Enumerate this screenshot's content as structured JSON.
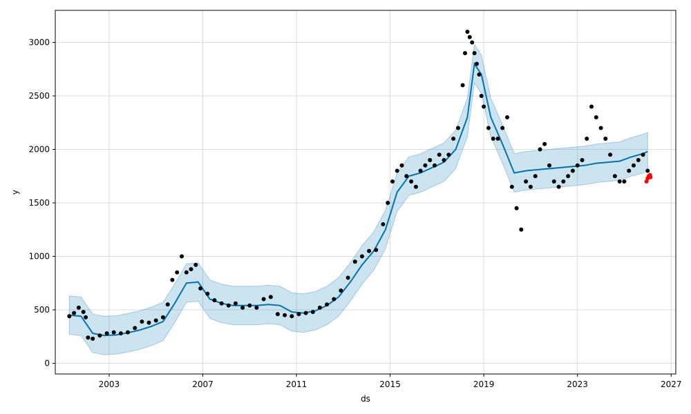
{
  "chart_data": {
    "type": "scatter",
    "title": "",
    "xlabel": "ds",
    "ylabel": "y",
    "xlim": [
      2000.7,
      2027.2
    ],
    "ylim": [
      -100,
      3300
    ],
    "grid": true,
    "x_ticks": [
      2003,
      2007,
      2011,
      2015,
      2019,
      2023,
      2027
    ],
    "x_tick_labels": [
      "2003",
      "2007",
      "2011",
      "2015",
      "2019",
      "2023",
      "2027"
    ],
    "y_ticks": [
      0,
      500,
      1000,
      1500,
      2000,
      2500,
      3000
    ],
    "y_tick_labels": [
      "0",
      "500",
      "1000",
      "1500",
      "2000",
      "2500",
      "3000"
    ],
    "colors": {
      "observed": "#000000",
      "forecast_line": "#0072B2",
      "uncertainty_band": "#0072B2",
      "recent": "#ff0000",
      "grid": "#dddddd"
    },
    "series": [
      {
        "kind": "observed_points",
        "x": [
          2001.3,
          2001.5,
          2001.7,
          2001.9,
          2002.0,
          2002.1,
          2002.3,
          2002.6,
          2002.9,
          2003.2,
          2003.5,
          2003.8,
          2004.1,
          2004.4,
          2004.7,
          2005.0,
          2005.3,
          2005.5,
          2005.7,
          2005.9,
          2006.1,
          2006.3,
          2006.5,
          2006.7,
          2006.9,
          2007.2,
          2007.5,
          2007.8,
          2008.1,
          2008.4,
          2008.7,
          2009.0,
          2009.3,
          2009.6,
          2009.9,
          2010.2,
          2010.5,
          2010.8,
          2011.1,
          2011.4,
          2011.7,
          2012.0,
          2012.3,
          2012.6,
          2012.9,
          2013.2,
          2013.5,
          2013.8,
          2014.1,
          2014.4,
          2014.7,
          2014.9,
          2015.1,
          2015.3,
          2015.5,
          2015.7,
          2015.9,
          2016.1,
          2016.3,
          2016.5,
          2016.7,
          2016.9,
          2017.1,
          2017.3,
          2017.5,
          2017.7,
          2017.9,
          2018.1,
          2018.2,
          2018.3,
          2018.4,
          2018.5,
          2018.6,
          2018.7,
          2018.8,
          2018.9,
          2019.0,
          2019.2,
          2019.4,
          2019.6,
          2019.8,
          2020.0,
          2020.2,
          2020.4,
          2020.6,
          2020.8,
          2021.0,
          2021.2,
          2021.4,
          2021.6,
          2021.8,
          2022.0,
          2022.2,
          2022.4,
          2022.6,
          2022.8,
          2023.0,
          2023.2,
          2023.4,
          2023.6,
          2023.8,
          2024.0,
          2024.2,
          2024.4,
          2024.6,
          2024.8,
          2025.0,
          2025.2,
          2025.4,
          2025.6,
          2025.8,
          2026.0
        ],
        "y": [
          440,
          470,
          520,
          480,
          430,
          240,
          230,
          260,
          280,
          290,
          280,
          290,
          330,
          390,
          380,
          400,
          430,
          550,
          780,
          850,
          1000,
          850,
          880,
          920,
          700,
          650,
          590,
          560,
          540,
          560,
          520,
          540,
          520,
          600,
          620,
          460,
          450,
          440,
          460,
          470,
          480,
          520,
          550,
          600,
          680,
          800,
          950,
          1000,
          1050,
          1060,
          1300,
          1500,
          1700,
          1800,
          1850,
          1750,
          1700,
          1650,
          1800,
          1850,
          1900,
          1850,
          1950,
          1900,
          1950,
          2100,
          2200,
          2600,
          2900,
          3100,
          3050,
          3000,
          2900,
          2800,
          2700,
          2500,
          2400,
          2200,
          2100,
          2100,
          2200,
          2300,
          1650,
          1450,
          1250,
          1700,
          1650,
          1750,
          2000,
          2050,
          1850,
          1700,
          1650,
          1700,
          1750,
          1800,
          1850,
          1900,
          2100,
          2400,
          2300,
          2200,
          2100,
          1950,
          1750,
          1700,
          1700,
          1800,
          1850,
          1900,
          1950,
          1800
        ]
      },
      {
        "kind": "forecast_yhat",
        "x": [
          2001.3,
          2001.8,
          2002.3,
          2002.8,
          2003.3,
          2003.8,
          2004.3,
          2004.8,
          2005.3,
          2005.8,
          2006.3,
          2006.8,
          2007.3,
          2007.8,
          2008.3,
          2008.8,
          2009.3,
          2009.8,
          2010.3,
          2010.8,
          2011.3,
          2011.8,
          2012.3,
          2012.8,
          2013.3,
          2013.8,
          2014.3,
          2014.8,
          2015.3,
          2015.8,
          2016.3,
          2016.8,
          2017.3,
          2017.8,
          2018.3,
          2018.6,
          2018.9,
          2019.3,
          2019.8,
          2020.3,
          2020.8,
          2021.3,
          2021.8,
          2022.3,
          2022.8,
          2023.3,
          2023.8,
          2024.3,
          2024.8,
          2025.3,
          2025.8,
          2026.0
        ],
        "y": [
          450,
          440,
          280,
          260,
          265,
          285,
          310,
          345,
          390,
          560,
          750,
          760,
          600,
          560,
          540,
          540,
          540,
          550,
          540,
          480,
          470,
          490,
          540,
          620,
          760,
          920,
          1050,
          1250,
          1600,
          1750,
          1780,
          1830,
          1880,
          2000,
          2300,
          2800,
          2700,
          2300,
          2050,
          1780,
          1800,
          1810,
          1820,
          1830,
          1840,
          1850,
          1870,
          1880,
          1890,
          1930,
          1960,
          1980
        ]
      },
      {
        "kind": "uncertainty_interval",
        "x": [
          2001.3,
          2001.8,
          2002.3,
          2002.8,
          2003.3,
          2003.8,
          2004.3,
          2004.8,
          2005.3,
          2005.8,
          2006.3,
          2006.8,
          2007.3,
          2007.8,
          2008.3,
          2008.8,
          2009.3,
          2009.8,
          2010.3,
          2010.8,
          2011.3,
          2011.8,
          2012.3,
          2012.8,
          2013.3,
          2013.8,
          2014.3,
          2014.8,
          2015.3,
          2015.8,
          2016.3,
          2016.8,
          2017.3,
          2017.8,
          2018.3,
          2018.6,
          2018.9,
          2019.3,
          2019.8,
          2020.3,
          2020.8,
          2021.3,
          2021.8,
          2022.3,
          2022.8,
          2023.3,
          2023.8,
          2024.3,
          2024.8,
          2025.3,
          2025.8,
          2026.0
        ],
        "lower": [
          270,
          260,
          100,
          80,
          85,
          105,
          130,
          165,
          210,
          380,
          570,
          580,
          420,
          380,
          360,
          360,
          360,
          370,
          360,
          300,
          290,
          310,
          360,
          440,
          580,
          740,
          870,
          1070,
          1420,
          1570,
          1600,
          1650,
          1700,
          1820,
          2120,
          2620,
          2520,
          2120,
          1870,
          1600,
          1620,
          1630,
          1640,
          1650,
          1660,
          1670,
          1690,
          1700,
          1710,
          1750,
          1780,
          1800
        ],
        "upper": [
          630,
          620,
          460,
          440,
          445,
          465,
          490,
          525,
          570,
          740,
          930,
          940,
          780,
          740,
          720,
          720,
          720,
          730,
          720,
          660,
          650,
          670,
          720,
          800,
          940,
          1100,
          1230,
          1430,
          1780,
          1930,
          1960,
          2010,
          2060,
          2180,
          2480,
          2980,
          2880,
          2480,
          2230,
          1960,
          1980,
          1990,
          2000,
          2010,
          2020,
          2030,
          2050,
          2060,
          2070,
          2110,
          2140,
          2160
        ]
      },
      {
        "kind": "recent_points",
        "x": [
          2025.95,
          2026.0,
          2026.05,
          2026.1,
          2026.12
        ],
        "y": [
          1700,
          1730,
          1750,
          1760,
          1740
        ]
      }
    ]
  }
}
